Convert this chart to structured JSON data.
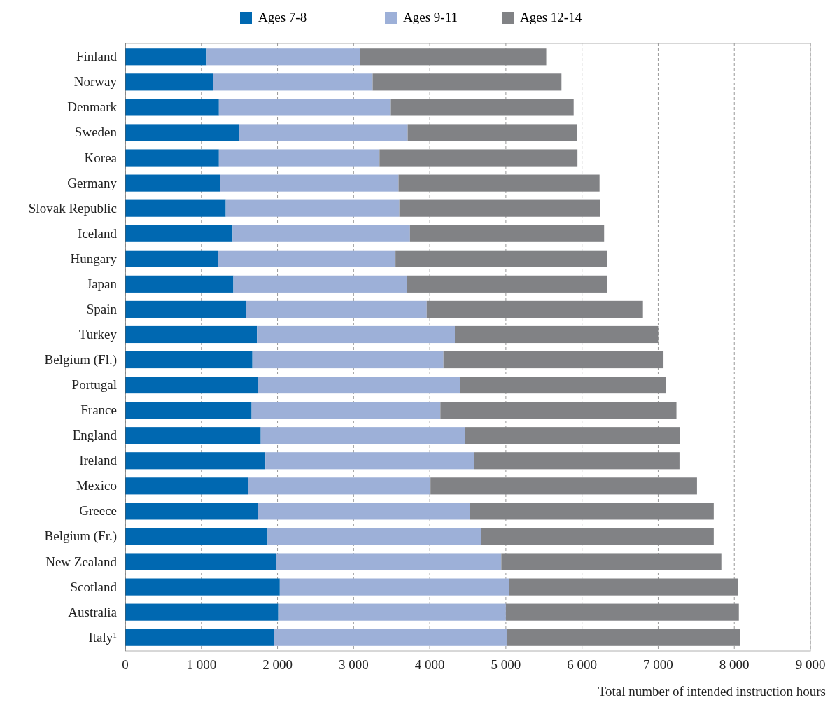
{
  "chart_data": {
    "type": "bar",
    "orientation": "horizontal",
    "stacked": true,
    "categories": [
      "Finland",
      "Norway",
      "Denmark",
      "Sweden",
      "Korea",
      "Germany",
      "Slovak Republic",
      "Iceland",
      "Hungary",
      "Japan",
      "Spain",
      "Turkey",
      "Belgium (Fl.)",
      "Portugal",
      "France",
      "England",
      "Ireland",
      "Mexico",
      "Greece",
      "Belgium (Fr.)",
      "New Zealand",
      "Scotland",
      "Australia",
      "Italy$^{1}$"
    ],
    "series": [
      {
        "name": "Ages 7-8",
        "color": "#0068b1",
        "values": [
          1070,
          1150,
          1230,
          1490,
          1230,
          1250,
          1320,
          1410,
          1220,
          1420,
          1590,
          1730,
          1670,
          1740,
          1660,
          1780,
          1840,
          1610,
          1740,
          1870,
          1980,
          2030,
          2010,
          1950
        ]
      },
      {
        "name": "Ages 9-11",
        "color": "#9db0d8",
        "values": [
          2010,
          2100,
          2250,
          2220,
          2110,
          2340,
          2280,
          2330,
          2330,
          2280,
          2370,
          2600,
          2510,
          2660,
          2480,
          2680,
          2740,
          2400,
          2790,
          2800,
          2960,
          3010,
          2990,
          3060
        ]
      },
      {
        "name": "Ages 12-14",
        "color": "#818285",
        "values": [
          2450,
          2480,
          2410,
          2220,
          2600,
          2640,
          2640,
          2550,
          2780,
          2630,
          2840,
          2670,
          2890,
          2700,
          3100,
          2830,
          2700,
          3500,
          3200,
          3060,
          2890,
          3010,
          3060,
          3070
        ]
      }
    ],
    "xlim": [
      0,
      9000
    ],
    "xticks": [
      0,
      {
        "value": 1000,
        "label": "1 000"
      },
      {
        "value": 2000,
        "label": "2 000"
      },
      {
        "value": 3000,
        "label": "3 000"
      },
      {
        "value": 4000,
        "label": "4 000"
      },
      {
        "value": 5000,
        "label": "5 000"
      },
      {
        "value": 6000,
        "label": "6 000"
      },
      {
        "value": 7000,
        "label": "7 000"
      },
      {
        "value": 8000,
        "label": "8 000"
      },
      {
        "value": 9000,
        "label": "9 000"
      }
    ],
    "xlabel": "Total number of intended instruction hours",
    "grid": "x",
    "legend": "top"
  }
}
